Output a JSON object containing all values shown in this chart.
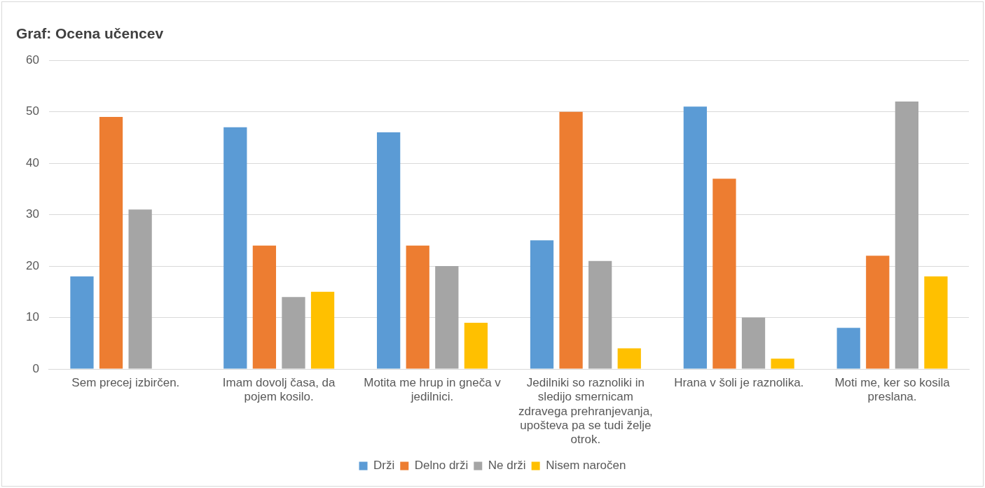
{
  "chart_data": {
    "type": "bar",
    "title": "Graf: Ocena učencev",
    "categories": [
      "Sem precej izbirčen.",
      "Imam dovolj časa, da pojem kosilo.",
      "Motita me hrup in gneča v jedilnici.",
      "Jedilniki so raznoliki in sledijo smernicam zdravega prehranjevanja, upošteva pa se tudi želje otrok.",
      "Hrana v šoli je raznolika.",
      "Moti me, ker so kosila preslana."
    ],
    "series": [
      {
        "name": "Drži",
        "color": "#5b9bd5",
        "values": [
          18,
          47,
          46,
          25,
          51,
          8
        ]
      },
      {
        "name": "Delno drži",
        "color": "#ed7d31",
        "values": [
          49,
          24,
          24,
          50,
          37,
          22
        ]
      },
      {
        "name": "Ne drži",
        "color": "#a5a5a5",
        "values": [
          31,
          14,
          20,
          21,
          10,
          52
        ]
      },
      {
        "name": "Nisem naročen",
        "color": "#ffc000",
        "values": [
          0,
          15,
          9,
          4,
          2,
          18
        ]
      }
    ],
    "ylim": [
      0,
      60
    ],
    "yticks": [
      0,
      10,
      20,
      30,
      40,
      50,
      60
    ],
    "grid": "y",
    "legend": "bottom"
  }
}
